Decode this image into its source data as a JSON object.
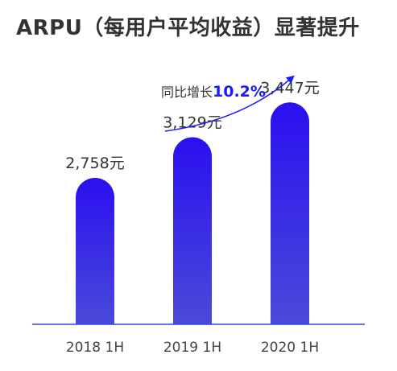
{
  "chart_data": {
    "type": "bar",
    "title": "ARPU（每用户平均收益）显著提升",
    "categories": [
      "2018 1H",
      "2019 1H",
      "2020 1H"
    ],
    "values": [
      2758,
      3129,
      3447
    ],
    "value_labels": [
      "2,758元",
      "3,129元",
      "3,447元"
    ],
    "ylim": [
      0,
      3500
    ],
    "grid": false,
    "annotation": {
      "label": "同比增长",
      "value": "10.2%"
    },
    "colors": {
      "bar_top": "#2a10f0",
      "bar_bottom": "#4a4ad8",
      "axis": "#3344ee",
      "arrow": "#1a1aff"
    }
  }
}
